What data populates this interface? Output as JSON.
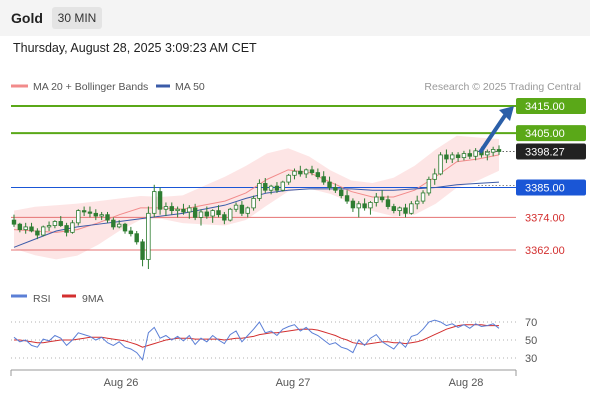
{
  "header": {
    "instrument": "Gold",
    "timeframe_tab": "30 MIN",
    "datetime": "Thursday, August 28, 2025 3:09:23 AM CET"
  },
  "legend": {
    "ma20": "MA 20 + Bollinger Bands",
    "ma50": "MA 50",
    "credit": "Research © 2025 Trading Central",
    "rsi": "RSI",
    "rsi_ma": "9MA"
  },
  "colors": {
    "candle": "#2e7d32",
    "ma20": "#f28b8b",
    "ma50": "#3b5ba8",
    "bollinger_fill": "#fde0e0",
    "resistance": "#5aa818",
    "pivot": "#1a56d6",
    "support": "#e57373",
    "last_price": "#222222",
    "arrow": "#2b5fa8",
    "rsi": "#5b7fd6",
    "rsi_ma": "#d32f2f"
  },
  "chart_data": [
    {
      "type": "candlestick",
      "instrument": "Gold",
      "timeframe": "30 MIN",
      "x_tick_labels": [
        "Aug 26",
        "Aug 27",
        "Aug 28"
      ],
      "levels": [
        {
          "label": "3415.00",
          "value": 3415.0,
          "kind": "resistance"
        },
        {
          "label": "3405.00",
          "value": 3405.0,
          "kind": "resistance"
        },
        {
          "label": "3398.27",
          "value": 3398.27,
          "kind": "last"
        },
        {
          "label": "3385.00",
          "value": 3385.0,
          "kind": "pivot"
        },
        {
          "label": "3374.00",
          "value": 3374.0,
          "kind": "support"
        },
        {
          "label": "3362.00",
          "value": 3362.0,
          "kind": "support"
        }
      ],
      "series": [
        {
          "name": "MA 20 + Bollinger Bands",
          "values": [
            3369.5,
            3369.0,
            3368.5,
            3369.5,
            3372.0,
            3375.0,
            3377.5,
            3377.5,
            3377.0,
            3378.5,
            3380.0,
            3383.0,
            3388.0,
            3391.5,
            3390.5,
            3387.0,
            3383.5,
            3381.5,
            3381.5,
            3384.0,
            3389.0,
            3394.5,
            3395.5,
            3397.0
          ]
        },
        {
          "name": "MA 50",
          "values": [
            3363.0,
            3366.0,
            3369.0,
            3370.5,
            3371.5,
            3372.5,
            3373.5,
            3374.5,
            3375.5,
            3377.0,
            3378.5,
            3381.0,
            3383.0,
            3384.0,
            3384.5,
            3384.5,
            3384.5,
            3384.0,
            3384.0,
            3384.5,
            3385.0,
            3386.0,
            3386.5,
            3387.0
          ]
        }
      ],
      "candles": [
        [
          3373.0,
          3375.0,
          3370.5,
          3371.5
        ],
        [
          3371.5,
          3372.0,
          3368.5,
          3369.5
        ],
        [
          3369.5,
          3372.0,
          3368.0,
          3370.5
        ],
        [
          3370.5,
          3372.0,
          3368.5,
          3369.0
        ],
        [
          3369.0,
          3370.0,
          3366.0,
          3367.5
        ],
        [
          3367.5,
          3371.0,
          3367.0,
          3370.5
        ],
        [
          3370.5,
          3372.5,
          3369.0,
          3371.0
        ],
        [
          3371.0,
          3373.0,
          3370.0,
          3372.5
        ],
        [
          3372.5,
          3374.5,
          3370.5,
          3371.0
        ],
        [
          3371.0,
          3372.0,
          3367.0,
          3368.5
        ],
        [
          3368.5,
          3373.0,
          3368.0,
          3372.0
        ],
        [
          3372.0,
          3377.0,
          3371.0,
          3376.5
        ],
        [
          3376.5,
          3378.0,
          3374.5,
          3376.0
        ],
        [
          3376.0,
          3378.0,
          3374.0,
          3375.5
        ],
        [
          3375.5,
          3377.0,
          3373.0,
          3374.5
        ],
        [
          3374.5,
          3376.0,
          3373.0,
          3375.0
        ],
        [
          3375.0,
          3376.0,
          3372.0,
          3373.0
        ],
        [
          3373.0,
          3374.0,
          3369.5,
          3370.5
        ],
        [
          3370.5,
          3373.0,
          3370.0,
          3371.5
        ],
        [
          3371.5,
          3372.0,
          3368.0,
          3369.0
        ],
        [
          3369.0,
          3370.5,
          3367.0,
          3368.0
        ],
        [
          3368.0,
          3369.0,
          3364.0,
          3365.0
        ],
        [
          3365.0,
          3366.0,
          3356.0,
          3358.5
        ],
        [
          3358.5,
          3378.0,
          3355.0,
          3375.5
        ],
        [
          3375.5,
          3386.0,
          3374.0,
          3383.5
        ],
        [
          3383.5,
          3385.0,
          3375.0,
          3377.0
        ],
        [
          3377.0,
          3379.5,
          3374.5,
          3378.0
        ],
        [
          3378.0,
          3379.5,
          3375.0,
          3376.5
        ],
        [
          3376.5,
          3378.0,
          3374.0,
          3377.0
        ],
        [
          3377.0,
          3379.0,
          3375.0,
          3376.0
        ],
        [
          3376.0,
          3378.5,
          3373.5,
          3377.5
        ],
        [
          3377.5,
          3379.0,
          3373.0,
          3374.0
        ],
        [
          3374.0,
          3377.0,
          3371.0,
          3376.0
        ],
        [
          3376.0,
          3378.0,
          3373.5,
          3374.5
        ],
        [
          3374.5,
          3377.0,
          3372.0,
          3376.5
        ],
        [
          3376.5,
          3378.5,
          3374.0,
          3375.0
        ],
        [
          3375.0,
          3376.0,
          3371.5,
          3373.0
        ],
        [
          3373.0,
          3377.5,
          3372.5,
          3377.0
        ],
        [
          3377.0,
          3379.5,
          3376.0,
          3378.5
        ],
        [
          3378.5,
          3380.0,
          3374.5,
          3375.5
        ],
        [
          3375.5,
          3378.0,
          3374.0,
          3377.5
        ],
        [
          3377.5,
          3382.0,
          3376.5,
          3381.0
        ],
        [
          3381.0,
          3388.0,
          3380.0,
          3386.5
        ],
        [
          3386.5,
          3388.5,
          3383.0,
          3384.0
        ],
        [
          3384.0,
          3386.0,
          3382.5,
          3385.5
        ],
        [
          3385.5,
          3387.0,
          3383.0,
          3384.0
        ],
        [
          3384.0,
          3387.5,
          3383.5,
          3387.0
        ],
        [
          3387.0,
          3390.0,
          3386.0,
          3389.5
        ],
        [
          3389.5,
          3392.0,
          3388.0,
          3391.0
        ],
        [
          3391.0,
          3393.0,
          3389.0,
          3390.0
        ],
        [
          3390.0,
          3392.0,
          3388.5,
          3391.5
        ],
        [
          3391.5,
          3393.0,
          3389.5,
          3390.5
        ],
        [
          3390.5,
          3392.0,
          3388.0,
          3389.0
        ],
        [
          3389.0,
          3391.0,
          3386.0,
          3387.0
        ],
        [
          3387.0,
          3389.0,
          3384.0,
          3385.0
        ],
        [
          3385.0,
          3386.5,
          3383.0,
          3384.0
        ],
        [
          3384.0,
          3385.0,
          3381.0,
          3382.0
        ],
        [
          3382.0,
          3384.0,
          3379.0,
          3380.0
        ],
        [
          3380.0,
          3381.0,
          3376.0,
          3377.5
        ],
        [
          3377.5,
          3380.0,
          3374.0,
          3379.0
        ],
        [
          3379.0,
          3381.0,
          3376.5,
          3377.5
        ],
        [
          3377.5,
          3380.0,
          3375.0,
          3379.5
        ],
        [
          3379.5,
          3383.0,
          3378.0,
          3381.5
        ],
        [
          3381.5,
          3384.0,
          3379.5,
          3380.5
        ],
        [
          3380.5,
          3382.0,
          3377.0,
          3378.0
        ],
        [
          3378.0,
          3379.0,
          3375.5,
          3376.5
        ],
        [
          3376.5,
          3378.0,
          3374.5,
          3377.5
        ],
        [
          3377.5,
          3379.0,
          3374.0,
          3375.5
        ],
        [
          3375.5,
          3380.0,
          3375.0,
          3379.0
        ],
        [
          3379.0,
          3382.0,
          3377.0,
          3380.0
        ],
        [
          3380.0,
          3384.0,
          3379.0,
          3383.0
        ],
        [
          3383.0,
          3389.0,
          3382.0,
          3388.0
        ],
        [
          3388.0,
          3392.0,
          3386.0,
          3390.0
        ],
        [
          3390.0,
          3398.0,
          3389.5,
          3397.0
        ],
        [
          3397.0,
          3399.0,
          3394.0,
          3395.5
        ],
        [
          3395.5,
          3398.0,
          3394.0,
          3397.0
        ],
        [
          3397.0,
          3398.0,
          3394.5,
          3396.0
        ],
        [
          3396.0,
          3398.5,
          3395.0,
          3397.5
        ],
        [
          3397.5,
          3399.0,
          3395.5,
          3396.5
        ],
        [
          3396.5,
          3399.5,
          3395.0,
          3398.5
        ],
        [
          3398.5,
          3400.0,
          3396.0,
          3397.0
        ],
        [
          3397.0,
          3399.0,
          3395.0,
          3398.0
        ],
        [
          3398.0,
          3400.0,
          3396.5,
          3399.0
        ],
        [
          3399.0,
          3400.5,
          3397.0,
          3398.27
        ]
      ],
      "forecast_arrow_target": 3415.0
    },
    {
      "type": "line",
      "title": "RSI",
      "y_tick_labels": [
        "70",
        "50",
        "30"
      ],
      "ylim": [
        20,
        80
      ],
      "series": [
        {
          "name": "RSI",
          "values": [
            53,
            48,
            50,
            44,
            42,
            51,
            49,
            55,
            52,
            44,
            50,
            58,
            56,
            54,
            50,
            53,
            47,
            44,
            48,
            42,
            40,
            36,
            28,
            58,
            64,
            52,
            55,
            50,
            54,
            49,
            55,
            45,
            52,
            48,
            55,
            50,
            46,
            56,
            60,
            48,
            55,
            62,
            70,
            58,
            60,
            55,
            62,
            65,
            67,
            60,
            64,
            58,
            55,
            50,
            45,
            47,
            42,
            40,
            36,
            50,
            44,
            52,
            56,
            48,
            44,
            40,
            48,
            42,
            54,
            56,
            62,
            70,
            72,
            70,
            66,
            68,
            64,
            67,
            63,
            68,
            65,
            66,
            68,
            63
          ]
        },
        {
          "name": "9MA",
          "values": [
            50,
            50,
            49,
            48,
            47,
            47,
            48,
            49,
            50,
            50,
            50,
            51,
            52,
            53,
            53,
            53,
            52,
            51,
            50,
            49,
            47,
            45,
            42,
            44,
            46,
            48,
            50,
            51,
            52,
            52,
            52,
            51,
            51,
            51,
            51,
            51,
            50,
            51,
            52,
            52,
            53,
            54,
            56,
            57,
            58,
            58,
            59,
            60,
            61,
            62,
            62,
            62,
            61,
            59,
            57,
            55,
            52,
            50,
            47,
            46,
            45,
            46,
            47,
            48,
            48,
            47,
            47,
            46,
            47,
            48,
            50,
            53,
            56,
            59,
            62,
            64,
            66,
            67,
            67,
            67,
            67,
            66,
            66,
            66
          ]
        }
      ]
    }
  ]
}
